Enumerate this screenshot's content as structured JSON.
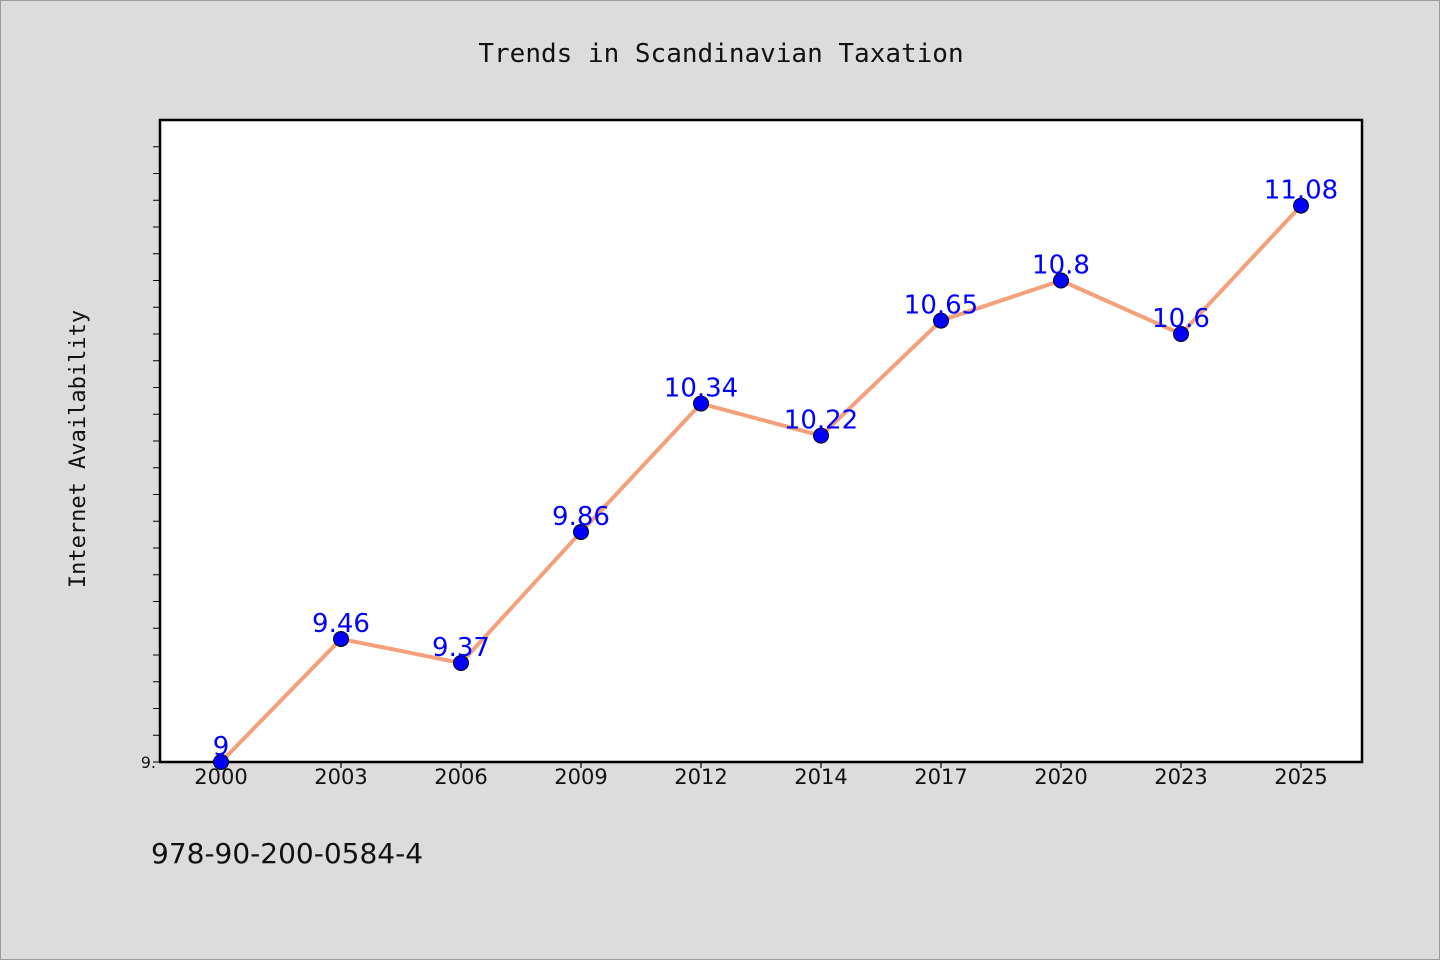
{
  "chart_data": {
    "type": "line",
    "title": "Trends in Scandinavian Taxation",
    "xlabel": "",
    "ylabel": "Internet Availability",
    "categories": [
      "2000",
      "2003",
      "2006",
      "2009",
      "2012",
      "2014",
      "2017",
      "2020",
      "2023",
      "2025"
    ],
    "values": [
      9,
      9.46,
      9.37,
      9.86,
      10.34,
      10.22,
      10.65,
      10.8,
      10.6,
      11.08
    ],
    "data_labels": [
      "9",
      "9.46",
      "9.37",
      "9.86",
      "10.34",
      "10.22",
      "10.65",
      "10.8",
      "10.6",
      "11.08"
    ],
    "ylim": [
      9,
      11.4
    ],
    "y_tick_label": "9.",
    "grid": false,
    "legend": "none",
    "colors": {
      "line": "#f4a07a",
      "marker": "#0000ff",
      "data_label": "#0000ff",
      "background": "#dcdcdc",
      "plot_background": "#ffffff"
    }
  },
  "footer": {
    "code": "978-90-200-0584-4"
  }
}
